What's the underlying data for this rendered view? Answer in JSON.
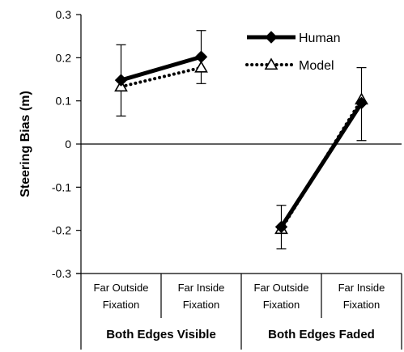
{
  "chart_data": {
    "type": "line",
    "ylabel": "Steering Bias (m)",
    "ylim": [
      -0.3,
      0.3
    ],
    "y_ticks": [
      "0.3",
      "0.2",
      "0.1",
      "0",
      "-0.1",
      "-0.2",
      "-0.3"
    ],
    "y_tick_values": [
      0.3,
      0.2,
      0.1,
      0,
      -0.1,
      -0.2,
      -0.3
    ],
    "categories": [
      [
        "Far Outside",
        "Fixation"
      ],
      [
        "Far Inside",
        "Fixation"
      ],
      [
        "Far Outside",
        "Fixation"
      ],
      [
        "Far Inside",
        "Fixation"
      ]
    ],
    "groups": [
      {
        "label": "Both Edges Visible",
        "categories": [
          0,
          1
        ]
      },
      {
        "label": "Both Edges Faded",
        "categories": [
          2,
          3
        ]
      }
    ],
    "series": [
      {
        "name": "Human",
        "style": "solid",
        "marker": "diamond",
        "color": "#000000",
        "segments": [
          [
            0,
            1
          ],
          [
            2,
            3
          ]
        ],
        "values": [
          0.148,
          0.202,
          -0.192,
          0.095
        ],
        "error_upper": [
          0.23,
          0.263,
          -0.142,
          0.177
        ],
        "error_lower": [
          0.065,
          0.14,
          -0.243,
          0.008
        ]
      },
      {
        "name": "Model",
        "style": "dotted",
        "marker": "triangle-open",
        "color": "#000000",
        "segments": [
          [
            0,
            1
          ],
          [
            2,
            3
          ]
        ],
        "values": [
          0.133,
          0.177,
          -0.197,
          0.103
        ]
      }
    ],
    "legend": "top-right",
    "grid": false
  }
}
